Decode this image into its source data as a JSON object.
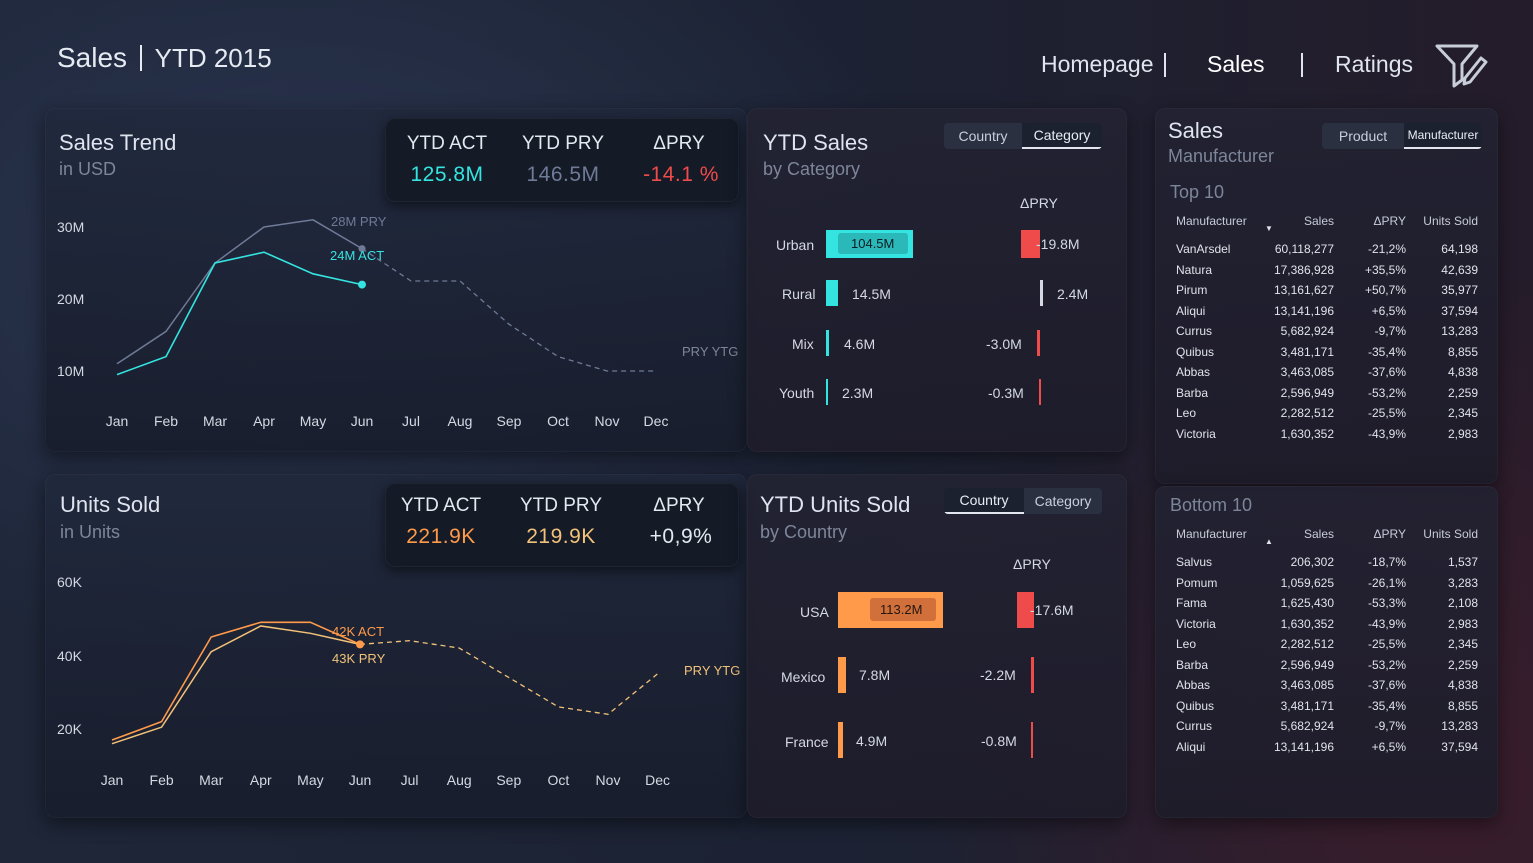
{
  "header": {
    "title": "Sales",
    "period": "YTD 2015",
    "nav": [
      "Homepage",
      "Sales",
      "Ratings"
    ],
    "filter_icon": "filter-edit-icon"
  },
  "sales_trend": {
    "title": "Sales Trend",
    "subtitle": "in USD",
    "kpi": {
      "act_label": "YTD ACT",
      "act_value": "125.8M",
      "pry_label": "YTD PRY",
      "pry_value": "146.5M",
      "dpry_label": "ΔPRY",
      "dpry_value": "-14.1 %"
    },
    "y_ticks": [
      "30M",
      "20M",
      "10M"
    ],
    "ann_pry": "28M PRY",
    "ann_act": "24M ACT",
    "ytg_label": "PRY YTG"
  },
  "ytd_sales": {
    "title": "YTD Sales",
    "subtitle": "by Category",
    "toggle": [
      "Country",
      "Category"
    ],
    "dpry_header": "ΔPRY",
    "items": [
      {
        "name": "Urban",
        "value": "104.5M",
        "delta": "-19.8M"
      },
      {
        "name": "Rural",
        "value": "14.5M",
        "delta": "2.4M"
      },
      {
        "name": "Mix",
        "value": "4.6M",
        "delta": "-3.0M"
      },
      {
        "name": "Youth",
        "value": "2.3M",
        "delta": "-0.3M"
      }
    ]
  },
  "units_sold": {
    "title": "Units Sold",
    "subtitle": "in Units",
    "kpi": {
      "act_label": "YTD ACT",
      "act_value": "221.9K",
      "pry_label": "YTD PRY",
      "pry_value": "219.9K",
      "dpry_label": "ΔPRY",
      "dpry_value": "+0,9%"
    },
    "y_ticks": [
      "60K",
      "40K",
      "20K"
    ],
    "ann_act": "42K ACT",
    "ann_pry": "43K PRY",
    "ytg_label": "PRY YTG"
  },
  "ytd_units": {
    "title": "YTD Units Sold",
    "subtitle": "by Country",
    "toggle": [
      "Country",
      "Category"
    ],
    "dpry_header": "ΔPRY",
    "items": [
      {
        "name": "USA",
        "value": "113.2M",
        "delta": "-17.6M"
      },
      {
        "name": "Mexico",
        "value": "7.8M",
        "delta": "-2.2M"
      },
      {
        "name": "France",
        "value": "4.9M",
        "delta": "-0.8M"
      }
    ]
  },
  "manufacturer": {
    "title": "Sales",
    "subtitle": "Manufacturer",
    "toggle": [
      "Product",
      "Manufacturer"
    ],
    "columns": [
      "Manufacturer",
      "Sales",
      "ΔPRY",
      "Units Sold"
    ],
    "top_title": "Top 10",
    "top": [
      [
        "VanArsdel",
        "60,118,277",
        "-21,2%",
        "64,198"
      ],
      [
        "Natura",
        "17,386,928",
        "+35,5%",
        "42,639"
      ],
      [
        "Pirum",
        "13,161,627",
        "+50,7%",
        "35,977"
      ],
      [
        "Aliqui",
        "13,141,196",
        "+6,5%",
        "37,594"
      ],
      [
        "Currus",
        "5,682,924",
        "-9,7%",
        "13,283"
      ],
      [
        "Quibus",
        "3,481,171",
        "-35,4%",
        "8,855"
      ],
      [
        "Abbas",
        "3,463,085",
        "-37,6%",
        "4,838"
      ],
      [
        "Barba",
        "2,596,949",
        "-53,2%",
        "2,259"
      ],
      [
        "Leo",
        "2,282,512",
        "-25,5%",
        "2,345"
      ],
      [
        "Victoria",
        "1,630,352",
        "-43,9%",
        "2,983"
      ]
    ],
    "bottom_title": "Bottom 10",
    "bottom": [
      [
        "Salvus",
        "206,302",
        "-18,7%",
        "1,537"
      ],
      [
        "Pomum",
        "1,059,625",
        "-26,1%",
        "3,283"
      ],
      [
        "Fama",
        "1,625,430",
        "-53,3%",
        "2,108"
      ],
      [
        "Victoria",
        "1,630,352",
        "-43,9%",
        "2,983"
      ],
      [
        "Leo",
        "2,282,512",
        "-25,5%",
        "2,345"
      ],
      [
        "Barba",
        "2,596,949",
        "-53,2%",
        "2,259"
      ],
      [
        "Abbas",
        "3,463,085",
        "-37,6%",
        "4,838"
      ],
      [
        "Quibus",
        "3,481,171",
        "-35,4%",
        "8,855"
      ],
      [
        "Currus",
        "5,682,924",
        "-9,7%",
        "13,283"
      ],
      [
        "Aliqui",
        "13,141,196",
        "+6,5%",
        "37,594"
      ]
    ]
  },
  "colors": {
    "teal": "#34e4e0",
    "orange": "#ff9a4a",
    "red": "#f04b4b",
    "pry_blue": "#7e8aa8",
    "light": "#dfe4ee"
  },
  "chart_data": [
    {
      "type": "line",
      "x": [
        "Jan",
        "Feb",
        "Mar",
        "Apr",
        "May",
        "Jun",
        "Jul",
        "Aug",
        "Sep",
        "Oct",
        "Nov",
        "Dec"
      ],
      "series": [
        {
          "values": [
            9.5,
            12,
            25,
            26.5,
            23.5,
            22,
            null,
            null,
            null,
            null,
            null,
            null
          ]
        },
        {
          "values": [
            11,
            15.5,
            25,
            30,
            31,
            27,
            22.5,
            22.5,
            16.5,
            12,
            10,
            10
          ]
        }
      ],
      "title": "Sales Trend",
      "ylabel": "in USD",
      "ylim": [
        0,
        35
      ],
      "grid": false
    },
    {
      "type": "line",
      "x": [
        "Jan",
        "Feb",
        "Mar",
        "Apr",
        "May",
        "Jun",
        "Jul",
        "Aug",
        "Sep",
        "Oct",
        "Nov",
        "Dec"
      ],
      "series": [
        {
          "values": [
            17,
            22,
            45,
            49,
            49,
            43,
            null,
            null,
            null,
            null,
            null,
            null
          ]
        },
        {
          "values": [
            16,
            20.5,
            41,
            48,
            46,
            43,
            44,
            42,
            34,
            26,
            24,
            35
          ]
        }
      ],
      "title": "Units Sold",
      "ylabel": "in Units",
      "ylim": [
        0,
        65
      ],
      "grid": false
    },
    {
      "type": "bar",
      "title": "YTD Sales",
      "categories": [
        "Urban",
        "Rural",
        "Mix",
        "Youth"
      ],
      "series": [
        {
          "values": [
            104.5,
            14.5,
            4.6,
            2.3
          ]
        },
        {
          "name": "ΔPRY",
          "values": [
            -19.8,
            2.4,
            -3.0,
            -0.3
          ]
        }
      ]
    },
    {
      "type": "bar",
      "title": "YTD Units Sold",
      "categories": [
        "USA",
        "Mexico",
        "France"
      ],
      "series": [
        {
          "values": [
            113.2,
            7.8,
            4.9
          ]
        },
        {
          "name": "ΔPRY",
          "values": [
            -17.6,
            -2.2,
            -0.8
          ]
        }
      ]
    }
  ]
}
